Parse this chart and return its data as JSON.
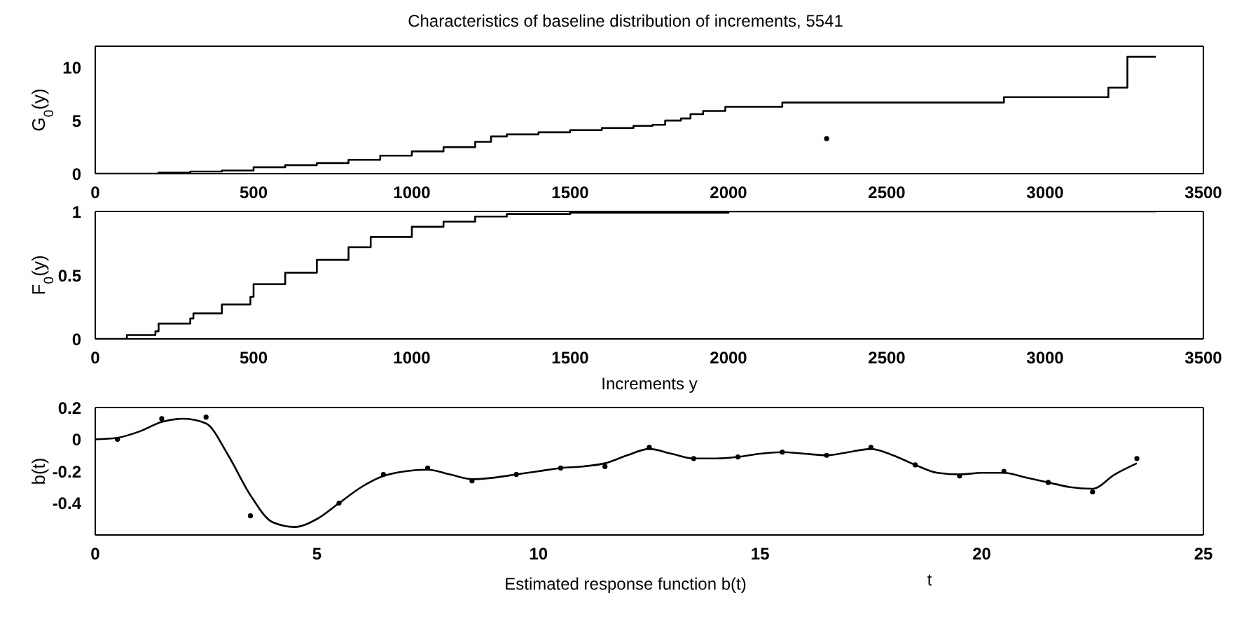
{
  "chart_data": [
    {
      "type": "step",
      "title": "Characteristics of baseline distribution of increments, 5541",
      "ylabel": "G$_{0}$(y)",
      "xlim": [
        0,
        3500
      ],
      "xticks": [
        0,
        500,
        1000,
        1500,
        2000,
        2500,
        3000,
        3500
      ],
      "ylim": [
        0,
        12
      ],
      "yticks": [
        0,
        5,
        10
      ],
      "grid": false,
      "series": [
        {
          "color": "#000000",
          "marker": "none",
          "x": [
            0,
            200,
            300,
            400,
            500,
            500,
            600,
            700,
            800,
            900,
            1000,
            1100,
            1200,
            1250,
            1300,
            1400,
            1500,
            1600,
            1700,
            1760,
            1800,
            1850,
            1880,
            1920,
            1990,
            2170,
            2870,
            3200,
            3260,
            3350
          ],
          "values": [
            0,
            0.1,
            0.2,
            0.3,
            0.4,
            0.6,
            0.8,
            1.0,
            1.3,
            1.7,
            2.1,
            2.5,
            3.0,
            3.5,
            3.7,
            3.9,
            4.1,
            4.3,
            4.5,
            4.6,
            5.0,
            5.2,
            5.6,
            5.9,
            6.3,
            6.7,
            7.2,
            8.1,
            11.0,
            11.0
          ]
        },
        {
          "type": "scatter",
          "color": "#000000",
          "marker": "circle",
          "x": [
            2310
          ],
          "values": [
            3.3
          ]
        }
      ]
    },
    {
      "type": "step",
      "xlabel": "Increments y",
      "ylabel": "F$_{0}$(y)",
      "xlim": [
        0,
        3500
      ],
      "xticks": [
        0,
        500,
        1000,
        1500,
        2000,
        2500,
        3000,
        3500
      ],
      "ylim": [
        0,
        1
      ],
      "yticks": [
        0,
        0.5,
        1
      ],
      "grid": false,
      "series": [
        {
          "color": "#000000",
          "marker": "none",
          "x": [
            0,
            100,
            190,
            200,
            300,
            310,
            400,
            490,
            500,
            600,
            700,
            800,
            870,
            1000,
            1100,
            1200,
            1300,
            1500,
            2000,
            3350
          ],
          "values": [
            0,
            0.03,
            0.06,
            0.12,
            0.16,
            0.2,
            0.27,
            0.33,
            0.43,
            0.52,
            0.62,
            0.72,
            0.8,
            0.88,
            0.92,
            0.96,
            0.98,
            0.99,
            1,
            1
          ]
        }
      ]
    },
    {
      "type": "line",
      "xlabel": "t",
      "ylabel": "b(t)",
      "annotations": [
        "Estimated response function b(t)"
      ],
      "xlim": [
        0,
        25
      ],
      "xticks": [
        0,
        5,
        10,
        15,
        20,
        25
      ],
      "ylim": [
        -0.6,
        0.2
      ],
      "yticks": [
        -0.4,
        -0.2,
        0,
        0.2
      ],
      "grid": false,
      "series": [
        {
          "color": "#000000",
          "marker": "none",
          "x": [
            0,
            0.5,
            1,
            1.5,
            2,
            2.5,
            3,
            3.5,
            4,
            4.5,
            5,
            5.5,
            6,
            6.5,
            7,
            7.5,
            8,
            8.5,
            9,
            9.5,
            10,
            10.5,
            11,
            11.5,
            12,
            12.5,
            13,
            13.5,
            14,
            14.5,
            15,
            15.5,
            16,
            16.5,
            17,
            17.5,
            18,
            18.5,
            19,
            19.5,
            20,
            20.5,
            21,
            21.5,
            22,
            22.5,
            23,
            23.5
          ],
          "values": [
            0,
            0.01,
            0.05,
            0.11,
            0.13,
            0.1,
            -0.1,
            -0.35,
            -0.52,
            -0.55,
            -0.5,
            -0.4,
            -0.3,
            -0.23,
            -0.2,
            -0.19,
            -0.22,
            -0.25,
            -0.24,
            -0.22,
            -0.2,
            -0.18,
            -0.17,
            -0.15,
            -0.1,
            -0.06,
            -0.09,
            -0.12,
            -0.12,
            -0.11,
            -0.09,
            -0.08,
            -0.09,
            -0.1,
            -0.08,
            -0.06,
            -0.1,
            -0.16,
            -0.21,
            -0.22,
            -0.21,
            -0.21,
            -0.24,
            -0.27,
            -0.3,
            -0.31,
            -0.22,
            -0.15
          ]
        },
        {
          "type": "scatter",
          "color": "#000000",
          "marker": "circle",
          "x": [
            0.5,
            1.5,
            2.5,
            3.5,
            5.5,
            6.5,
            7.5,
            8.5,
            9.5,
            10.5,
            11.5,
            12.5,
            13.5,
            14.5,
            15.5,
            16.5,
            17.5,
            18.5,
            19.5,
            20.5,
            21.5,
            22.5,
            23.5
          ],
          "values": [
            0,
            0.13,
            0.14,
            -0.48,
            -0.4,
            -0.22,
            -0.18,
            -0.26,
            -0.22,
            -0.18,
            -0.17,
            -0.05,
            -0.12,
            -0.11,
            -0.08,
            -0.1,
            -0.05,
            -0.16,
            -0.23,
            -0.2,
            -0.27,
            -0.33,
            -0.12
          ]
        }
      ]
    }
  ]
}
